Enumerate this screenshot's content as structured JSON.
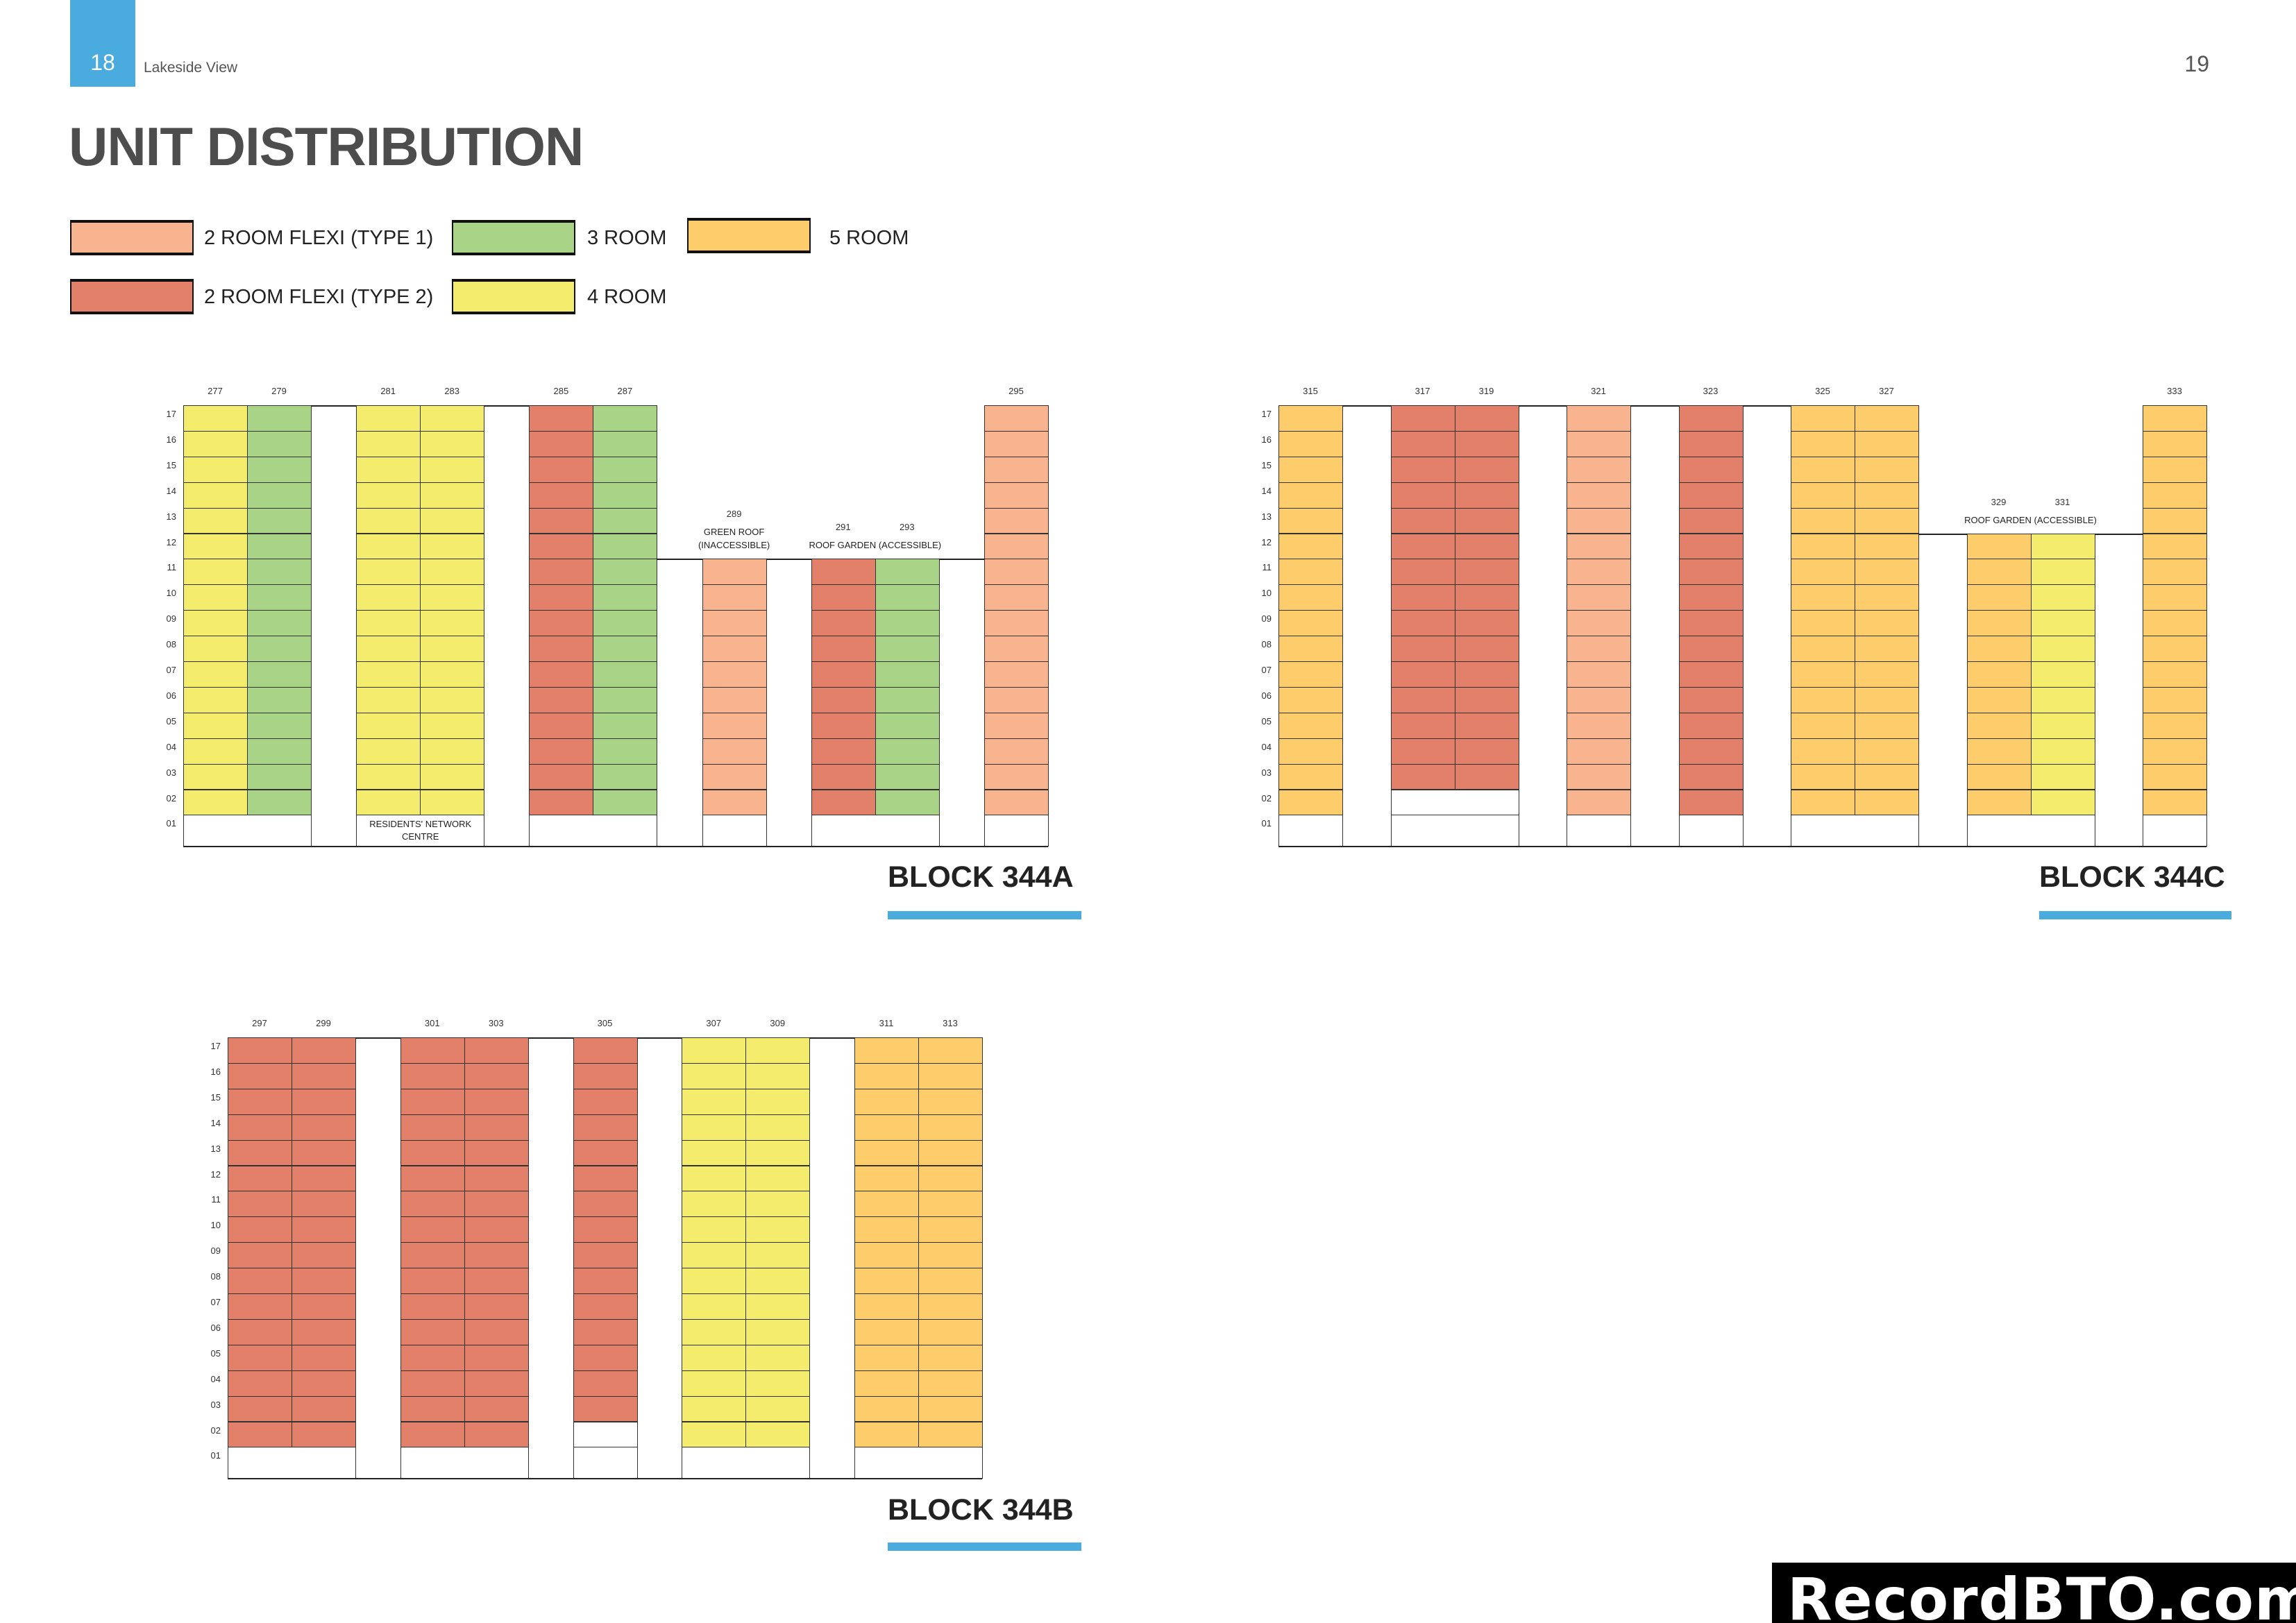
{
  "header": {
    "left_page_number": "18",
    "running_title": "Lakeside View",
    "right_page_number": "19"
  },
  "title": "UNIT DISTRIBUTION",
  "colors": {
    "accent": "#4AABDF",
    "flexi1": "#F7B48E",
    "flexi2": "#E2806A",
    "3room": "#A9D487",
    "4room": "#F3EC6D",
    "5room": "#FDCD6B"
  },
  "legend": [
    {
      "type": "flexi1",
      "label": "2 ROOM FLEXI (TYPE 1)"
    },
    {
      "type": "flexi2",
      "label": "2 ROOM FLEXI (TYPE 2)"
    },
    {
      "type": "3room",
      "label": "3 ROOM"
    },
    {
      "type": "4room",
      "label": "4 ROOM"
    },
    {
      "type": "5room",
      "label": "5 ROOM"
    }
  ],
  "floors": [
    "17",
    "16",
    "15",
    "14",
    "13",
    "12",
    "11",
    "10",
    "09",
    "08",
    "07",
    "06",
    "05",
    "04",
    "03",
    "02",
    "01"
  ],
  "blocks": [
    {
      "title": "BLOCK 344A",
      "columns": [
        {
          "unit": "277",
          "type": "4room",
          "floors": [
            2,
            17
          ]
        },
        {
          "unit": "279",
          "type": "3room",
          "floors": [
            2,
            17
          ]
        },
        {
          "gap": true
        },
        {
          "unit": "281",
          "type": "4room",
          "floors": [
            2,
            17
          ]
        },
        {
          "unit": "283",
          "type": "4room",
          "floors": [
            2,
            17
          ]
        },
        {
          "gap": true
        },
        {
          "unit": "285",
          "type": "flexi2",
          "floors": [
            2,
            17
          ]
        },
        {
          "unit": "287",
          "type": "3room",
          "floors": [
            2,
            17
          ]
        },
        {
          "gap": true
        },
        {
          "unit": "289",
          "type": "flexi1",
          "floors": [
            2,
            11
          ]
        },
        {
          "gap": true
        },
        {
          "unit": "291",
          "type": "flexi2",
          "floors": [
            2,
            11
          ]
        },
        {
          "unit": "293",
          "type": "3room",
          "floors": [
            2,
            11
          ]
        },
        {
          "gap": true
        },
        {
          "unit": "295",
          "type": "flexi1",
          "floors": [
            2,
            17
          ]
        }
      ],
      "ground": [
        {
          "units": [
            "277",
            "279"
          ]
        },
        {
          "units": [
            "281",
            "283"
          ],
          "label": "RESIDENTS' NETWORK CENTRE"
        },
        {
          "units": [
            "285",
            "287"
          ]
        },
        {
          "units": [
            "289"
          ]
        },
        {
          "units": [
            "291",
            "293"
          ]
        },
        {
          "units": [
            "295"
          ]
        }
      ],
      "roof_notes": [
        {
          "units": [
            "289"
          ],
          "lines": [
            "GREEN ROOF",
            "(INACCESSIBLE)"
          ]
        },
        {
          "units": [
            "291",
            "293"
          ],
          "lines": [
            "ROOF GARDEN (ACCESSIBLE)"
          ]
        }
      ]
    },
    {
      "title": "BLOCK 344C",
      "columns": [
        {
          "unit": "315",
          "type": "5room",
          "floors": [
            2,
            17
          ]
        },
        {
          "gap": true
        },
        {
          "unit": "317",
          "type": "flexi2",
          "floors": [
            3,
            17
          ]
        },
        {
          "unit": "319",
          "type": "flexi2",
          "floors": [
            3,
            17
          ]
        },
        {
          "gap": true
        },
        {
          "unit": "321",
          "type": "flexi1",
          "floors": [
            2,
            17
          ]
        },
        {
          "gap": true
        },
        {
          "unit": "323",
          "type": "flexi2",
          "floors": [
            2,
            17
          ]
        },
        {
          "gap": true
        },
        {
          "unit": "325",
          "type": "5room",
          "floors": [
            2,
            17
          ]
        },
        {
          "unit": "327",
          "type": "5room",
          "floors": [
            2,
            17
          ]
        },
        {
          "gap": true
        },
        {
          "unit": "329",
          "type": "5room",
          "floors": [
            2,
            12
          ]
        },
        {
          "unit": "331",
          "type": "4room",
          "floors": [
            2,
            12
          ]
        },
        {
          "gap": true
        },
        {
          "unit": "333",
          "type": "5room",
          "floors": [
            2,
            17
          ]
        }
      ],
      "ground": [
        {
          "units": [
            "315"
          ]
        },
        {
          "units": [
            "317",
            "319"
          ]
        },
        {
          "units": [
            "321"
          ]
        },
        {
          "units": [
            "323"
          ]
        },
        {
          "units": [
            "325",
            "327"
          ]
        },
        {
          "units": [
            "329",
            "331"
          ]
        },
        {
          "units": [
            "333"
          ]
        }
      ],
      "roof_notes": [
        {
          "units": [
            "329",
            "331"
          ],
          "lines": [
            "ROOF GARDEN (ACCESSIBLE)"
          ]
        }
      ]
    },
    {
      "title": "BLOCK 344B",
      "columns": [
        {
          "unit": "297",
          "type": "flexi2",
          "floors": [
            2,
            17
          ]
        },
        {
          "unit": "299",
          "type": "flexi2",
          "floors": [
            2,
            17
          ]
        },
        {
          "gap": true
        },
        {
          "unit": "301",
          "type": "flexi2",
          "floors": [
            2,
            17
          ]
        },
        {
          "unit": "303",
          "type": "flexi2",
          "floors": [
            2,
            17
          ]
        },
        {
          "gap": true
        },
        {
          "unit": "305",
          "type": "flexi2",
          "floors": [
            3,
            17
          ]
        },
        {
          "gap": true
        },
        {
          "unit": "307",
          "type": "4room",
          "floors": [
            2,
            17
          ]
        },
        {
          "unit": "309",
          "type": "4room",
          "floors": [
            2,
            17
          ]
        },
        {
          "gap": true
        },
        {
          "unit": "311",
          "type": "5room",
          "floors": [
            2,
            17
          ]
        },
        {
          "unit": "313",
          "type": "5room",
          "floors": [
            2,
            17
          ]
        }
      ],
      "ground": [
        {
          "units": [
            "297",
            "299"
          ]
        },
        {
          "units": [
            "301",
            "303"
          ]
        },
        {
          "units": [
            "305"
          ]
        },
        {
          "units": [
            "307",
            "309"
          ]
        },
        {
          "units": [
            "311",
            "313"
          ]
        }
      ],
      "roof_notes": []
    }
  ],
  "watermark": "RecordBTO.com"
}
